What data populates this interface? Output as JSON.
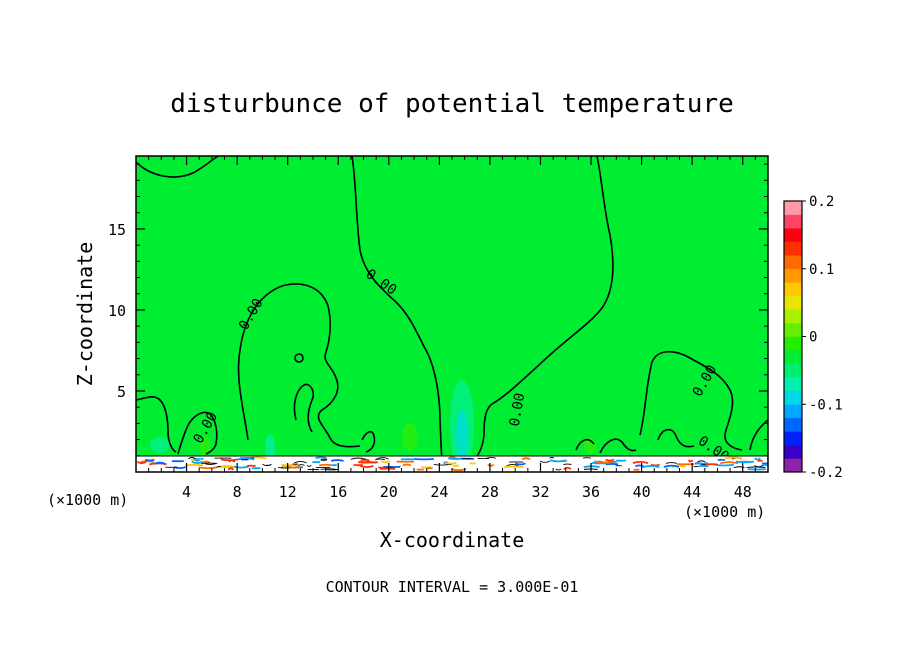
{
  "chart_data": {
    "type": "heatmap",
    "title": "disturbunce of potential temperature",
    "xlabel": "X-coordinate",
    "ylabel": "Z-coordinate",
    "x_unit": "(×1000 m)",
    "z_unit": "(×1000 m)",
    "xlim": [
      0,
      50
    ],
    "ylim": [
      0,
      19.5
    ],
    "x_ticks": [
      4,
      8,
      12,
      16,
      20,
      24,
      28,
      32,
      36,
      40,
      44,
      48
    ],
    "y_ticks": [
      5,
      10,
      15
    ],
    "contour_interval_text": "CONTOUR INTERVAL = 3.000E-01",
    "contour_label_text": "0.00",
    "contour_labels": [
      {
        "x": 19.2,
        "z": 11.5,
        "text": "0.00"
      },
      {
        "x": 9.4,
        "z": 9.6,
        "text": "0.00"
      },
      {
        "x": 5.8,
        "z": 2.6,
        "text": "0.00"
      },
      {
        "x": 30.5,
        "z": 3.8,
        "text": "0.00"
      },
      {
        "x": 45.3,
        "z": 5.5,
        "text": "0.00"
      },
      {
        "x": 45.5,
        "z": 1.2,
        "text": "0.00"
      }
    ],
    "colorbar": {
      "min": -0.2,
      "max": 0.2,
      "tick_labels": [
        "0.2",
        "0.1",
        "0",
        "-0.1",
        "-0.2"
      ],
      "tick_values": [
        0.2,
        0.1,
        0,
        -0.1,
        -0.2
      ],
      "colors": [
        "#8e24aa",
        "#3a00c8",
        "#0022ff",
        "#0066ff",
        "#00a8ff",
        "#00d8e8",
        "#00f0b0",
        "#00ee70",
        "#00ee30",
        "#22ee00",
        "#66ee00",
        "#aaee00",
        "#e6e600",
        "#ffc800",
        "#ff9a00",
        "#ff6a00",
        "#ff3000",
        "#ff0010",
        "#ff4466",
        "#ff9aa8"
      ]
    },
    "background_value": 0.0
  },
  "colors": {
    "field": "#00ee32",
    "contour": "#000000"
  }
}
